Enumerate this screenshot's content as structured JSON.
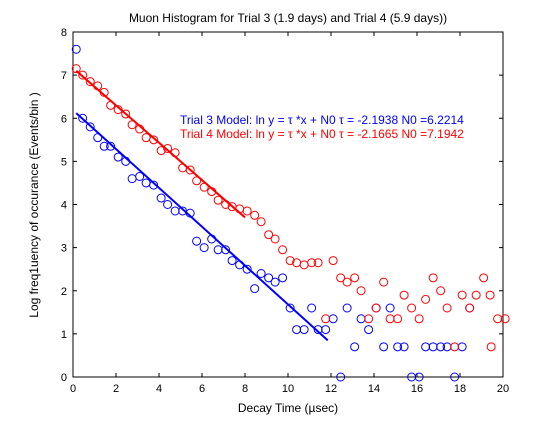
{
  "chart_data": {
    "type": "scatter",
    "title": "Muon Histogram for Trial 3 (1.9 days) and Trial 4 (5.9 days))",
    "xlabel": "Decay Time (µsec)",
    "ylabel": "Log freq1uency of occurance (Events/bin )",
    "xlim": [
      0,
      20
    ],
    "ylim": [
      0,
      8
    ],
    "xticks": [
      0,
      2,
      4,
      6,
      8,
      10,
      12,
      14,
      16,
      18,
      20
    ],
    "yticks": [
      0,
      1,
      2,
      3,
      4,
      5,
      6,
      7,
      8
    ],
    "grid": false,
    "series": [
      {
        "color": "#0000ff",
        "marker": "circle",
        "points": [
          [
            0.15,
            7.6
          ],
          [
            0.45,
            6.0
          ],
          [
            0.8,
            5.8
          ],
          [
            1.15,
            5.55
          ],
          [
            1.45,
            5.35
          ],
          [
            1.75,
            5.35
          ],
          [
            2.1,
            5.1
          ],
          [
            2.45,
            5.0
          ],
          [
            2.75,
            4.6
          ],
          [
            3.1,
            4.65
          ],
          [
            3.4,
            4.5
          ],
          [
            3.75,
            4.45
          ],
          [
            4.1,
            4.15
          ],
          [
            4.4,
            4.0
          ],
          [
            4.75,
            3.85
          ],
          [
            5.1,
            3.85
          ],
          [
            5.45,
            3.8
          ],
          [
            5.75,
            3.15
          ],
          [
            6.1,
            3.0
          ],
          [
            6.45,
            3.2
          ],
          [
            6.75,
            2.95
          ],
          [
            7.1,
            2.95
          ],
          [
            7.4,
            2.7
          ],
          [
            7.75,
            2.6
          ],
          [
            8.1,
            2.5
          ],
          [
            8.45,
            2.05
          ],
          [
            8.75,
            2.4
          ],
          [
            9.1,
            2.3
          ],
          [
            9.4,
            2.2
          ],
          [
            9.75,
            2.3
          ],
          [
            10.1,
            1.6
          ],
          [
            10.4,
            1.1
          ],
          [
            10.75,
            1.1
          ],
          [
            11.1,
            1.6
          ],
          [
            11.4,
            1.1
          ],
          [
            11.75,
            1.1
          ],
          [
            12.1,
            1.35
          ],
          [
            12.45,
            0.0
          ],
          [
            12.75,
            1.6
          ],
          [
            13.1,
            0.7
          ],
          [
            13.4,
            1.35
          ],
          [
            13.75,
            1.1
          ],
          [
            14.1,
            1.6
          ],
          [
            14.45,
            0.7
          ],
          [
            14.75,
            1.6
          ],
          [
            15.1,
            0.7
          ],
          [
            15.4,
            0.7
          ],
          [
            15.75,
            0.0
          ],
          [
            16.1,
            0.0
          ],
          [
            16.4,
            0.7
          ],
          [
            16.75,
            0.7
          ],
          [
            17.1,
            0.7
          ],
          [
            17.4,
            0.7
          ],
          [
            17.75,
            0.0
          ],
          [
            18.1,
            0.7
          ],
          [
            18.45,
            1.6
          ]
        ],
        "model": {
          "x": [
            0.15,
            11.85
          ],
          "y": [
            6.12,
            0.85
          ]
        }
      },
      {
        "color": "#ff0000",
        "marker": "circle",
        "points": [
          [
            0.15,
            7.15
          ],
          [
            0.45,
            7.0
          ],
          [
            0.8,
            6.85
          ],
          [
            1.15,
            6.75
          ],
          [
            1.45,
            6.6
          ],
          [
            1.75,
            6.3
          ],
          [
            2.1,
            6.2
          ],
          [
            2.45,
            6.1
          ],
          [
            2.75,
            5.85
          ],
          [
            3.1,
            5.75
          ],
          [
            3.4,
            5.55
          ],
          [
            3.75,
            5.5
          ],
          [
            4.1,
            5.25
          ],
          [
            4.4,
            5.3
          ],
          [
            4.75,
            5.2
          ],
          [
            5.1,
            4.85
          ],
          [
            5.45,
            4.8
          ],
          [
            5.75,
            4.55
          ],
          [
            6.1,
            4.4
          ],
          [
            6.45,
            4.3
          ],
          [
            6.75,
            4.1
          ],
          [
            7.1,
            4.0
          ],
          [
            7.4,
            3.95
          ],
          [
            7.75,
            3.9
          ],
          [
            8.1,
            3.85
          ],
          [
            8.45,
            3.75
          ],
          [
            8.75,
            3.6
          ],
          [
            9.1,
            3.3
          ],
          [
            9.4,
            3.2
          ],
          [
            9.75,
            2.95
          ],
          [
            10.1,
            2.7
          ],
          [
            10.4,
            2.65
          ],
          [
            10.75,
            2.6
          ],
          [
            11.1,
            2.65
          ],
          [
            11.4,
            2.65
          ],
          [
            11.75,
            1.35
          ],
          [
            12.1,
            2.7
          ],
          [
            12.45,
            2.3
          ],
          [
            12.75,
            2.2
          ],
          [
            13.1,
            2.3
          ],
          [
            13.4,
            2.0
          ],
          [
            13.75,
            1.35
          ],
          [
            14.1,
            1.6
          ],
          [
            14.45,
            2.2
          ],
          [
            14.75,
            1.35
          ],
          [
            15.1,
            1.35
          ],
          [
            15.4,
            1.9
          ],
          [
            15.75,
            1.6
          ],
          [
            16.1,
            1.35
          ],
          [
            16.4,
            1.8
          ],
          [
            16.75,
            2.3
          ],
          [
            17.1,
            2.0
          ],
          [
            17.4,
            1.6
          ],
          [
            17.75,
            0.7
          ],
          [
            18.1,
            1.9
          ],
          [
            18.45,
            1.6
          ],
          [
            18.75,
            1.9
          ],
          [
            19.1,
            2.3
          ],
          [
            19.4,
            1.9
          ],
          [
            19.75,
            1.35
          ],
          [
            19.45,
            0.7
          ],
          [
            20.1,
            1.35
          ]
        ],
        "model": {
          "x": [
            0.15,
            8.0
          ],
          "y": [
            7.1,
            3.7
          ]
        }
      }
    ],
    "annotations": [
      {
        "text": "Trial 3 Model: ln y =  τ *x + N0 τ = -2.1938 N0 =6.2214",
        "color": "#0000ff"
      },
      {
        "text": "Trial 4 Model: ln y =  τ *x + N0 τ = -2.1665 N0 =7.1942",
        "color": "#ff0000"
      }
    ]
  }
}
